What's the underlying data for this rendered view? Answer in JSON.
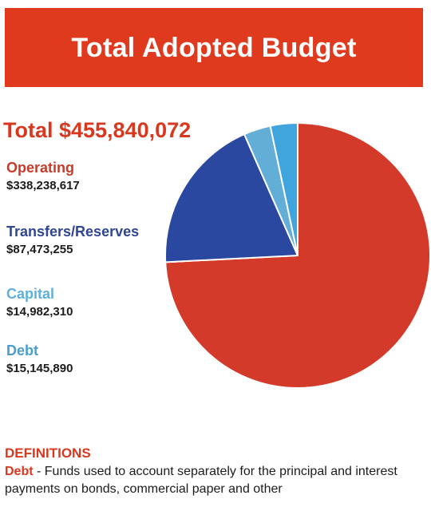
{
  "header": {
    "title": "Total Adopted Budget"
  },
  "total": {
    "label": "Total $455,840,072"
  },
  "colors": {
    "banner": "#e03a1e",
    "total_text": "#d9381e"
  },
  "chart_data": {
    "type": "pie",
    "total_label": "Total $455,840,072",
    "slices": [
      {
        "name": "Operating",
        "value": 338238617,
        "value_label": "$338,238,617",
        "color": "#d33a29"
      },
      {
        "name": "Transfers/Reserves",
        "value": 87473255,
        "value_label": "$87,473,255",
        "color": "#2b48a0"
      },
      {
        "name": "Capital",
        "value": 14982310,
        "value_label": "$14,982,310",
        "color": "#62aed6"
      },
      {
        "name": "Debt",
        "value": 15145890,
        "value_label": "$15,145,890",
        "color": "#3fa5dc"
      }
    ],
    "draw_order": [
      "Operating",
      "Transfers/Reserves",
      "Capital",
      "Debt"
    ],
    "legend_placement": "left"
  },
  "legend": {
    "items": [
      {
        "name": "Operating",
        "value": "$338,238,617",
        "color": "#c83b2b"
      },
      {
        "name": "Transfers/Reserves",
        "value": "$87,473,255",
        "color": "#2f4596"
      },
      {
        "name": "Capital",
        "value": "$14,982,310",
        "color": "#5fb0da"
      },
      {
        "name": "Debt",
        "value": "$15,145,890",
        "color": "#4a9ecf"
      }
    ]
  },
  "definitions": {
    "heading": "DEFINITIONS",
    "term": "Debt",
    "text": " - Funds used to account separately for the principal and interest payments on bonds, commercial paper and other"
  }
}
